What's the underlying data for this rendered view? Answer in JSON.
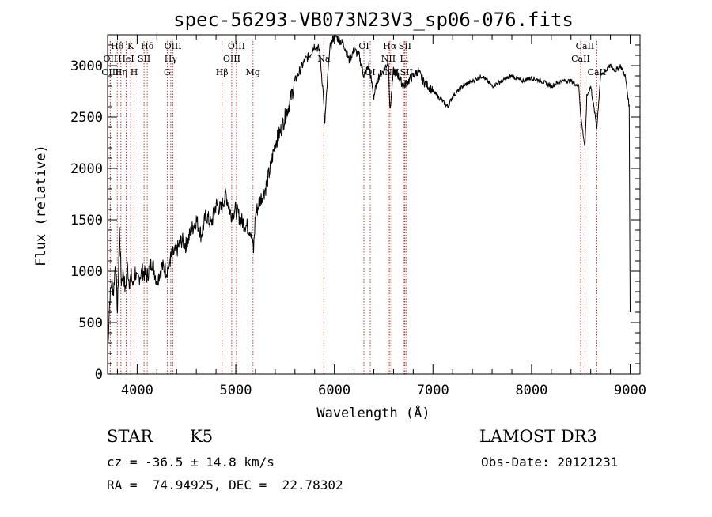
{
  "chart_data": {
    "type": "line",
    "title": "spec-56293-VB073N23V3_sp06-076.fits",
    "xlabel": "Wavelength (Å)",
    "ylabel": "Flux (relative)",
    "xlim": [
      3700,
      9100
    ],
    "ylim": [
      0,
      3300
    ],
    "xticks": [
      4000,
      5000,
      6000,
      7000,
      8000,
      9000
    ],
    "yticks": [
      0,
      500,
      1000,
      1500,
      2000,
      2500,
      3000
    ],
    "series": [
      {
        "name": "spectrum",
        "x": [
          3700,
          3720,
          3740,
          3760,
          3780,
          3800,
          3820,
          3840,
          3860,
          3880,
          3900,
          3920,
          3940,
          3960,
          3980,
          4000,
          4050,
          4100,
          4150,
          4200,
          4250,
          4300,
          4350,
          4400,
          4450,
          4500,
          4550,
          4600,
          4650,
          4700,
          4750,
          4800,
          4850,
          4880,
          4900,
          4950,
          5000,
          5050,
          5100,
          5150,
          5180,
          5200,
          5250,
          5300,
          5350,
          5400,
          5450,
          5500,
          5550,
          5600,
          5650,
          5700,
          5750,
          5800,
          5850,
          5890,
          5900,
          5950,
          6000,
          6050,
          6100,
          6150,
          6200,
          6250,
          6300,
          6350,
          6400,
          6450,
          6500,
          6550,
          6563,
          6600,
          6650,
          6700,
          6750,
          6800,
          6850,
          6900,
          6950,
          7000,
          7050,
          7100,
          7150,
          7200,
          7300,
          7400,
          7500,
          7600,
          7700,
          7800,
          7900,
          8000,
          8100,
          8200,
          8300,
          8400,
          8480,
          8500,
          8542,
          8560,
          8600,
          8662,
          8700,
          8750,
          8800,
          8850,
          8900,
          8950,
          8990,
          9000
        ],
        "values": [
          200,
          700,
          900,
          800,
          1100,
          600,
          1400,
          900,
          1000,
          800,
          1050,
          900,
          950,
          850,
          1000,
          900,
          1000,
          950,
          1100,
          900,
          1050,
          1000,
          1150,
          1200,
          1300,
          1250,
          1400,
          1500,
          1350,
          1550,
          1450,
          1650,
          1600,
          1700,
          1750,
          1550,
          1600,
          1500,
          1450,
          1400,
          1200,
          1550,
          1700,
          1800,
          2000,
          2250,
          2350,
          2500,
          2650,
          2850,
          2950,
          3050,
          3100,
          3200,
          3150,
          2700,
          2400,
          3150,
          3300,
          3250,
          3200,
          3050,
          3150,
          3100,
          2900,
          3000,
          2700,
          2900,
          2950,
          3050,
          2550,
          2950,
          2900,
          2800,
          2850,
          2900,
          2950,
          2850,
          2800,
          2750,
          2700,
          2650,
          2600,
          2700,
          2800,
          2850,
          2900,
          2800,
          2850,
          2900,
          2850,
          2880,
          2850,
          2800,
          2850,
          2850,
          2800,
          2500,
          2200,
          2700,
          2800,
          2400,
          2900,
          2950,
          3000,
          2950,
          3000,
          2900,
          2600,
          600
        ]
      }
    ],
    "line_markers": [
      {
        "label": "Hθ",
        "x": 3798,
        "row": 1
      },
      {
        "label": "OII",
        "x": 3727,
        "row": 2
      },
      {
        "label": "OIII",
        "x": 3727,
        "row": 3
      },
      {
        "label": "Hη",
        "x": 3835,
        "row": 3
      },
      {
        "label": "HeI",
        "x": 3889,
        "row": 2
      },
      {
        "label": "K",
        "x": 3934,
        "row": 1
      },
      {
        "label": "H",
        "x": 3969,
        "row": 3
      },
      {
        "label": "SII",
        "x": 4070,
        "row": 2
      },
      {
        "label": "Hδ",
        "x": 4102,
        "row": 1
      },
      {
        "label": "OIII",
        "x": 4363,
        "row": 1
      },
      {
        "label": "Hγ",
        "x": 4341,
        "row": 2
      },
      {
        "label": "G",
        "x": 4305,
        "row": 3
      },
      {
        "label": "OIII",
        "x": 5007,
        "row": 1
      },
      {
        "label": "OIII",
        "x": 4959,
        "row": 2
      },
      {
        "label": "Hβ",
        "x": 4861,
        "row": 3
      },
      {
        "label": "Mg",
        "x": 5175,
        "row": 3
      },
      {
        "label": "Na",
        "x": 5893,
        "row": 2
      },
      {
        "label": "OI",
        "x": 6300,
        "row": 1
      },
      {
        "label": "OI",
        "x": 6364,
        "row": 3
      },
      {
        "label": "Hα",
        "x": 6563,
        "row": 1
      },
      {
        "label": "NII",
        "x": 6548,
        "row": 2
      },
      {
        "label": "NII",
        "x": 6583,
        "row": 3
      },
      {
        "label": "SII",
        "x": 6716,
        "row": 1
      },
      {
        "label": "Li",
        "x": 6708,
        "row": 2
      },
      {
        "label": "SII",
        "x": 6731,
        "row": 3
      },
      {
        "label": "CaII",
        "x": 8542,
        "row": 1
      },
      {
        "label": "CaII",
        "x": 8498,
        "row": 2
      },
      {
        "label": "CaII",
        "x": 8662,
        "row": 3
      }
    ]
  },
  "info": {
    "object_type": "STAR",
    "subclass": "K5",
    "survey": "LAMOST DR3",
    "redshift": "cz = -36.5 ± 14.8 km/s",
    "obs_date": "Obs-Date: 20121231",
    "coords": "RA =  74.94925, DEC =  22.78302"
  }
}
